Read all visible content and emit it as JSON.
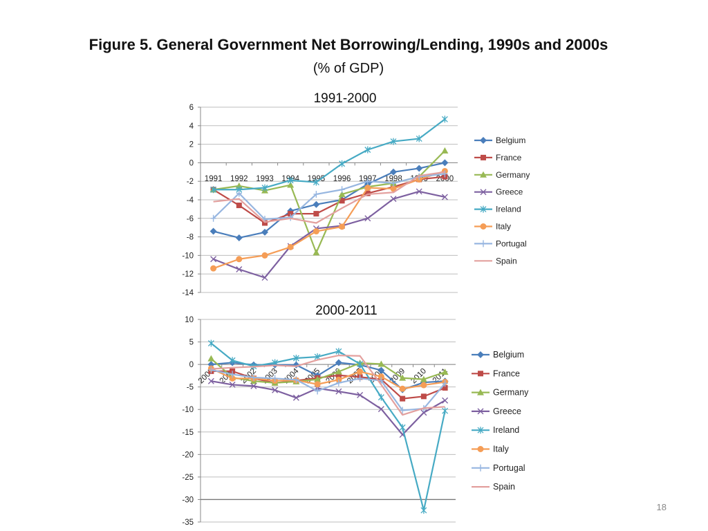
{
  "slide": {
    "title": "Figure 5. General Government Net Borrowing/Lending, 1990s and 2000s",
    "subtitle": "(% of GDP)",
    "page_number": "18"
  },
  "series_styles": [
    {
      "name": "Belgium",
      "color": "#4a7ebb",
      "marker": "diamond"
    },
    {
      "name": "France",
      "color": "#be4b48",
      "marker": "square"
    },
    {
      "name": "Germany",
      "color": "#98b954",
      "marker": "triangle"
    },
    {
      "name": "Greece",
      "color": "#7d60a0",
      "marker": "x"
    },
    {
      "name": "Ireland",
      "color": "#46aac4",
      "marker": "star"
    },
    {
      "name": "Italy",
      "color": "#f59d56",
      "marker": "circle"
    },
    {
      "name": "Portugal",
      "color": "#97b6e0",
      "marker": "plus"
    },
    {
      "name": "Spain",
      "color": "#e3a09e",
      "marker": "none"
    }
  ],
  "chart_data": [
    {
      "type": "line",
      "title": "1991-2000",
      "categories": [
        "1991",
        "1992",
        "1993",
        "1994",
        "1995",
        "1996",
        "1997",
        "1998",
        "1999",
        "2000"
      ],
      "ylim": [
        -14,
        6
      ],
      "yticks": [
        6,
        4,
        2,
        0,
        -2,
        -4,
        -6,
        -8,
        -10,
        -12,
        -14
      ],
      "grid": true,
      "legend": "right",
      "series": [
        {
          "name": "Belgium",
          "values": [
            -7.4,
            -8.1,
            -7.5,
            -5.2,
            -4.5,
            -4.0,
            -2.3,
            -1.0,
            -0.6,
            0.0
          ]
        },
        {
          "name": "France",
          "values": [
            -2.9,
            -4.6,
            -6.5,
            -5.5,
            -5.5,
            -4.1,
            -3.3,
            -2.6,
            -1.8,
            -1.5
          ]
        },
        {
          "name": "Germany",
          "values": [
            -2.9,
            -2.5,
            -3.0,
            -2.4,
            -9.7,
            -3.4,
            -2.6,
            -2.2,
            -1.5,
            1.3
          ]
        },
        {
          "name": "Greece",
          "values": [
            -10.4,
            -11.5,
            -12.4,
            -9.0,
            -7.1,
            -6.8,
            -6.0,
            -3.9,
            -3.1,
            -3.7
          ]
        },
        {
          "name": "Ireland",
          "values": [
            -2.9,
            -2.9,
            -2.7,
            -1.9,
            -2.1,
            -0.1,
            1.4,
            2.3,
            2.6,
            4.7
          ]
        },
        {
          "name": "Italy",
          "values": [
            -11.4,
            -10.4,
            -10.0,
            -9.1,
            -7.4,
            -6.9,
            -2.7,
            -2.8,
            -1.8,
            -0.9
          ]
        },
        {
          "name": "Portugal",
          "values": [
            -6.0,
            -3.3,
            -6.1,
            -5.9,
            -3.4,
            -2.9,
            -2.0,
            -2.2,
            -1.5,
            -1.2
          ]
        },
        {
          "name": "Spain",
          "values": [
            -4.2,
            -3.9,
            -6.4,
            -6.0,
            -6.5,
            -4.9,
            -3.4,
            -3.2,
            -1.4,
            -1.0
          ]
        }
      ]
    },
    {
      "type": "line",
      "title": "2000-2011",
      "categories": [
        "2000",
        "2001",
        "2002",
        "2003",
        "2004",
        "2005",
        "2006",
        "2007",
        "2008",
        "2009",
        "2010",
        "2011"
      ],
      "ylim": [
        -35,
        10
      ],
      "yticks": [
        10,
        5,
        0,
        -5,
        -10,
        -15,
        -20,
        -25,
        -30,
        -35
      ],
      "grid": true,
      "legend": "right",
      "series": [
        {
          "name": "Belgium",
          "values": [
            0.0,
            0.4,
            -0.1,
            -0.1,
            -0.1,
            -2.5,
            0.4,
            -0.1,
            -1.3,
            -5.6,
            -4.0,
            -3.7
          ]
        },
        {
          "name": "France",
          "values": [
            -1.5,
            -1.5,
            -3.1,
            -4.1,
            -3.6,
            -3.0,
            -2.4,
            -2.8,
            -3.3,
            -7.6,
            -7.1,
            -5.2
          ]
        },
        {
          "name": "Germany",
          "values": [
            1.3,
            -2.9,
            -3.7,
            -4.1,
            -3.8,
            -3.3,
            -1.6,
            0.3,
            0.1,
            -3.0,
            -3.3,
            -1.7
          ]
        },
        {
          "name": "Greece",
          "values": [
            -3.7,
            -4.5,
            -4.8,
            -5.7,
            -7.4,
            -5.3,
            -6.0,
            -6.8,
            -9.9,
            -15.6,
            -10.7,
            -8.0
          ]
        },
        {
          "name": "Ireland",
          "values": [
            4.7,
            0.9,
            -0.4,
            0.4,
            1.4,
            1.7,
            2.9,
            0.1,
            -7.3,
            -14.0,
            -32.4,
            -10.3
          ]
        },
        {
          "name": "Italy",
          "values": [
            -0.9,
            -3.1,
            -3.1,
            -3.6,
            -3.5,
            -4.4,
            -3.4,
            -1.6,
            -2.7,
            -5.4,
            -4.6,
            -3.9
          ]
        },
        {
          "name": "Portugal",
          "values": [
            -1.2,
            -2.2,
            -2.9,
            -3.1,
            -3.4,
            -5.9,
            -4.1,
            -3.1,
            -3.6,
            -10.2,
            -9.8,
            -4.2
          ]
        },
        {
          "name": "Spain",
          "values": [
            -1.0,
            -0.7,
            -0.5,
            -0.2,
            -0.4,
            1.0,
            2.0,
            1.9,
            -4.5,
            -11.2,
            -9.7,
            -9.4
          ]
        }
      ]
    }
  ]
}
